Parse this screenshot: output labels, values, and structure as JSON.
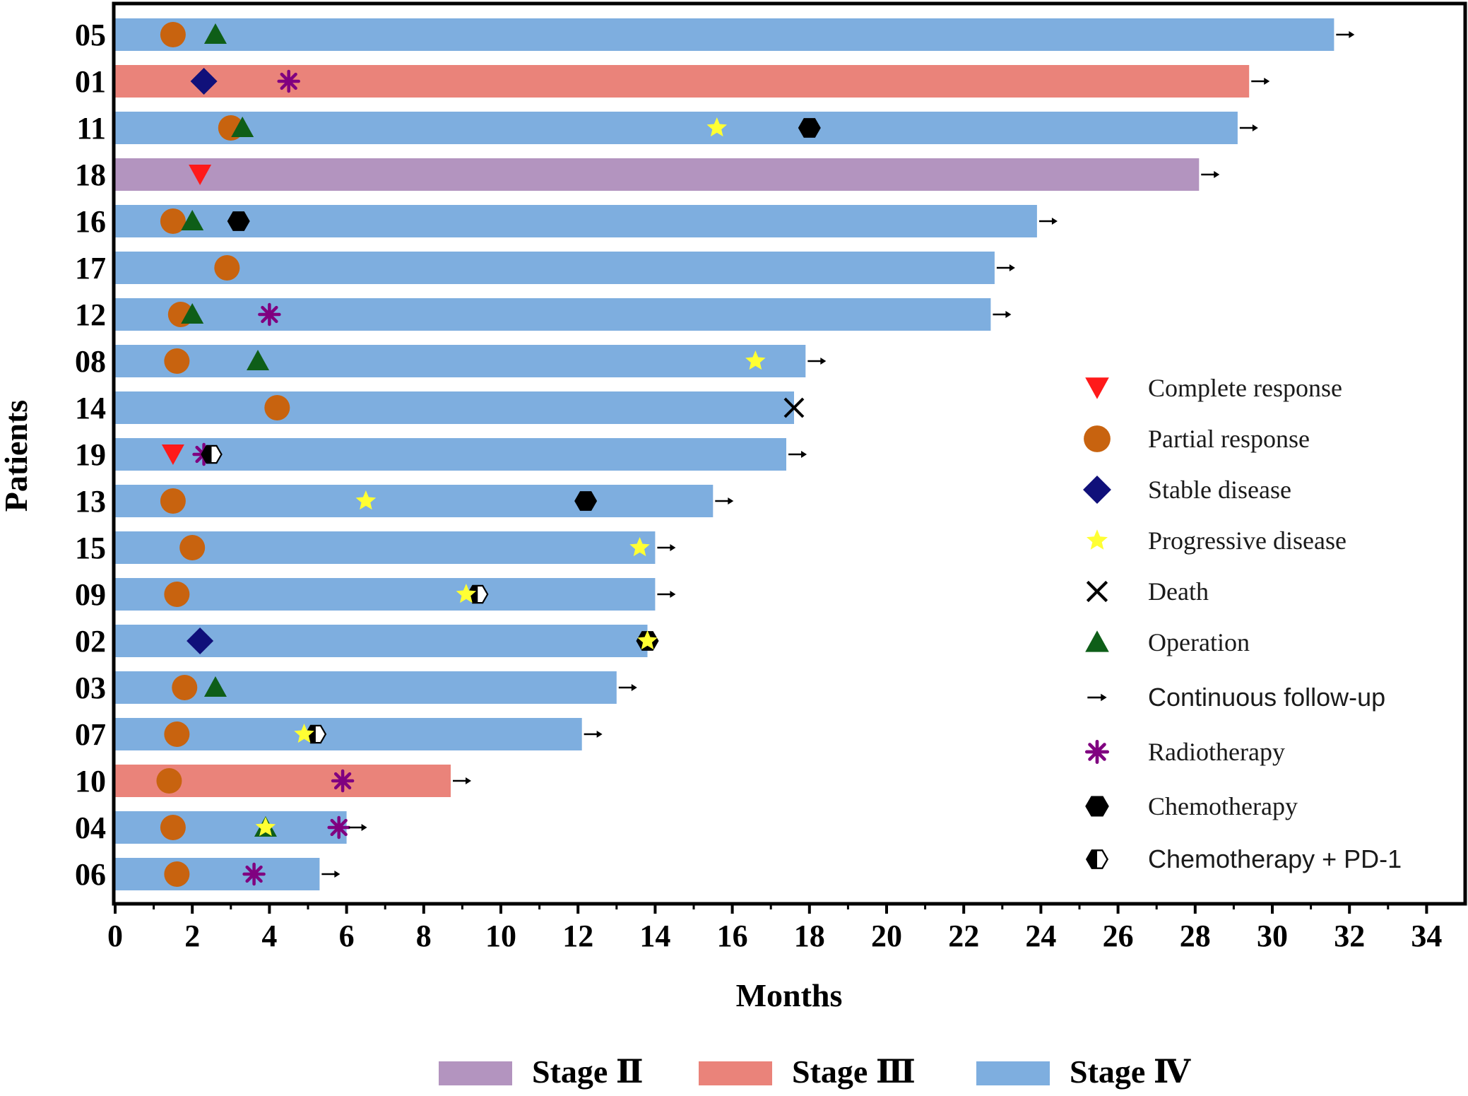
{
  "chart_data": {
    "type": "bar",
    "orientation": "horizontal",
    "xlabel": "Months",
    "ylabel": "Patients",
    "xlim": [
      0,
      35
    ],
    "xticks": [
      0,
      2,
      4,
      6,
      8,
      10,
      12,
      14,
      16,
      18,
      20,
      22,
      24,
      26,
      28,
      30,
      32,
      34
    ],
    "xtick_labels": [
      "0",
      "2",
      "4",
      "6",
      "8",
      "10",
      "12",
      "14",
      "16",
      "18",
      "20",
      "22",
      "24",
      "26",
      "28",
      "30",
      "32",
      "34"
    ],
    "grid": false,
    "legend_position": "right-inside",
    "stage_legend_position": "bottom",
    "colors": {
      "Stage II": "#b394bf",
      "Stage III": "#ea837a",
      "Stage IV": "#7eaedf",
      "complete_response": "#ff1a1a",
      "partial_response": "#c8630f",
      "stable_disease": "#10107a",
      "progressive_disease": "#ffff33",
      "death": "#000000",
      "operation": "#0e5e18",
      "radiotherapy": "#800080",
      "chemotherapy": "#000000",
      "axis": "#000000"
    },
    "stage_legend": [
      {
        "key": "Stage II",
        "label": "Stage Ⅱ"
      },
      {
        "key": "Stage III",
        "label": "Stage Ⅲ"
      },
      {
        "key": "Stage IV",
        "label": "Stage Ⅳ"
      }
    ],
    "event_legend": [
      {
        "type": "complete_response",
        "label": "Complete response"
      },
      {
        "type": "partial_response",
        "label": "Partial response"
      },
      {
        "type": "stable_disease",
        "label": "Stable disease"
      },
      {
        "type": "progressive_disease",
        "label": "Progressive disease"
      },
      {
        "type": "death",
        "label": "Death"
      },
      {
        "type": "operation",
        "label": "Operation"
      },
      {
        "type": "follow_up",
        "label": "Continuous follow-up"
      },
      {
        "type": "radiotherapy",
        "label": "Radiotherapy"
      },
      {
        "type": "chemotherapy",
        "label": "Chemotherapy"
      },
      {
        "type": "chemo_pd1",
        "label": "Chemotherapy + PD-1"
      }
    ],
    "patients": [
      {
        "id": "05",
        "stage": "Stage IV",
        "duration": 31.6,
        "follow_up": true,
        "events": [
          {
            "type": "partial_response",
            "t": 1.5
          },
          {
            "type": "operation",
            "t": 2.6
          }
        ]
      },
      {
        "id": "01",
        "stage": "Stage III",
        "duration": 29.4,
        "follow_up": true,
        "events": [
          {
            "type": "stable_disease",
            "t": 2.3
          },
          {
            "type": "radiotherapy",
            "t": 4.5
          }
        ]
      },
      {
        "id": "11",
        "stage": "Stage IV",
        "duration": 29.1,
        "follow_up": true,
        "events": [
          {
            "type": "operation",
            "t": 3.3
          },
          {
            "type": "partial_response",
            "t": 3.0
          },
          {
            "type": "progressive_disease",
            "t": 15.6
          },
          {
            "type": "chemotherapy",
            "t": 18.0
          }
        ]
      },
      {
        "id": "18",
        "stage": "Stage II",
        "duration": 28.1,
        "follow_up": true,
        "events": [
          {
            "type": "complete_response",
            "t": 2.2
          }
        ]
      },
      {
        "id": "16",
        "stage": "Stage IV",
        "duration": 23.9,
        "follow_up": true,
        "events": [
          {
            "type": "operation",
            "t": 2.0
          },
          {
            "type": "partial_response",
            "t": 1.5
          },
          {
            "type": "chemotherapy",
            "t": 3.2
          }
        ]
      },
      {
        "id": "17",
        "stage": "Stage IV",
        "duration": 22.8,
        "follow_up": true,
        "events": [
          {
            "type": "partial_response",
            "t": 2.9
          }
        ]
      },
      {
        "id": "12",
        "stage": "Stage IV",
        "duration": 22.7,
        "follow_up": true,
        "events": [
          {
            "type": "operation",
            "t": 2.0
          },
          {
            "type": "partial_response",
            "t": 1.7
          },
          {
            "type": "radiotherapy",
            "t": 4.0
          }
        ]
      },
      {
        "id": "08",
        "stage": "Stage IV",
        "duration": 17.9,
        "follow_up": true,
        "events": [
          {
            "type": "partial_response",
            "t": 1.6
          },
          {
            "type": "operation",
            "t": 3.7
          },
          {
            "type": "progressive_disease",
            "t": 16.6
          }
        ]
      },
      {
        "id": "14",
        "stage": "Stage IV",
        "duration": 17.6,
        "follow_up": false,
        "events": [
          {
            "type": "partial_response",
            "t": 4.2
          },
          {
            "type": "death",
            "t": 17.6
          }
        ]
      },
      {
        "id": "19",
        "stage": "Stage IV",
        "duration": 17.4,
        "follow_up": true,
        "events": [
          {
            "type": "complete_response",
            "t": 1.5
          },
          {
            "type": "chemo_pd1",
            "t": 2.5
          },
          {
            "type": "radiotherapy",
            "t": 2.3
          }
        ]
      },
      {
        "id": "13",
        "stage": "Stage IV",
        "duration": 15.5,
        "follow_up": true,
        "events": [
          {
            "type": "partial_response",
            "t": 1.5
          },
          {
            "type": "progressive_disease",
            "t": 6.5
          },
          {
            "type": "chemotherapy",
            "t": 12.2
          }
        ]
      },
      {
        "id": "15",
        "stage": "Stage IV",
        "duration": 14.0,
        "follow_up": true,
        "events": [
          {
            "type": "partial_response",
            "t": 2.0
          },
          {
            "type": "progressive_disease",
            "t": 13.6
          }
        ]
      },
      {
        "id": "09",
        "stage": "Stage IV",
        "duration": 14.0,
        "follow_up": true,
        "events": [
          {
            "type": "partial_response",
            "t": 1.6
          },
          {
            "type": "chemo_pd1",
            "t": 9.4
          },
          {
            "type": "progressive_disease",
            "t": 9.1
          }
        ]
      },
      {
        "id": "02",
        "stage": "Stage IV",
        "duration": 13.8,
        "follow_up": false,
        "events": [
          {
            "type": "stable_disease",
            "t": 2.2
          },
          {
            "type": "chemotherapy",
            "t": 13.8
          },
          {
            "type": "progressive_disease",
            "t": 13.8
          }
        ]
      },
      {
        "id": "03",
        "stage": "Stage IV",
        "duration": 13.0,
        "follow_up": true,
        "events": [
          {
            "type": "partial_response",
            "t": 1.8
          },
          {
            "type": "operation",
            "t": 2.6
          }
        ]
      },
      {
        "id": "07",
        "stage": "Stage IV",
        "duration": 12.1,
        "follow_up": true,
        "events": [
          {
            "type": "partial_response",
            "t": 1.6
          },
          {
            "type": "chemo_pd1",
            "t": 5.2
          },
          {
            "type": "progressive_disease",
            "t": 4.9
          }
        ]
      },
      {
        "id": "10",
        "stage": "Stage III",
        "duration": 8.7,
        "follow_up": true,
        "events": [
          {
            "type": "partial_response",
            "t": 1.4
          },
          {
            "type": "radiotherapy",
            "t": 5.9
          }
        ]
      },
      {
        "id": "04",
        "stage": "Stage IV",
        "duration": 6.0,
        "follow_up": true,
        "events": [
          {
            "type": "partial_response",
            "t": 1.5
          },
          {
            "type": "operation",
            "t": 3.9
          },
          {
            "type": "progressive_disease",
            "t": 3.9
          },
          {
            "type": "radiotherapy",
            "t": 5.8
          }
        ]
      },
      {
        "id": "06",
        "stage": "Stage IV",
        "duration": 5.3,
        "follow_up": true,
        "events": [
          {
            "type": "partial_response",
            "t": 1.6
          },
          {
            "type": "radiotherapy",
            "t": 3.6
          }
        ]
      }
    ]
  }
}
